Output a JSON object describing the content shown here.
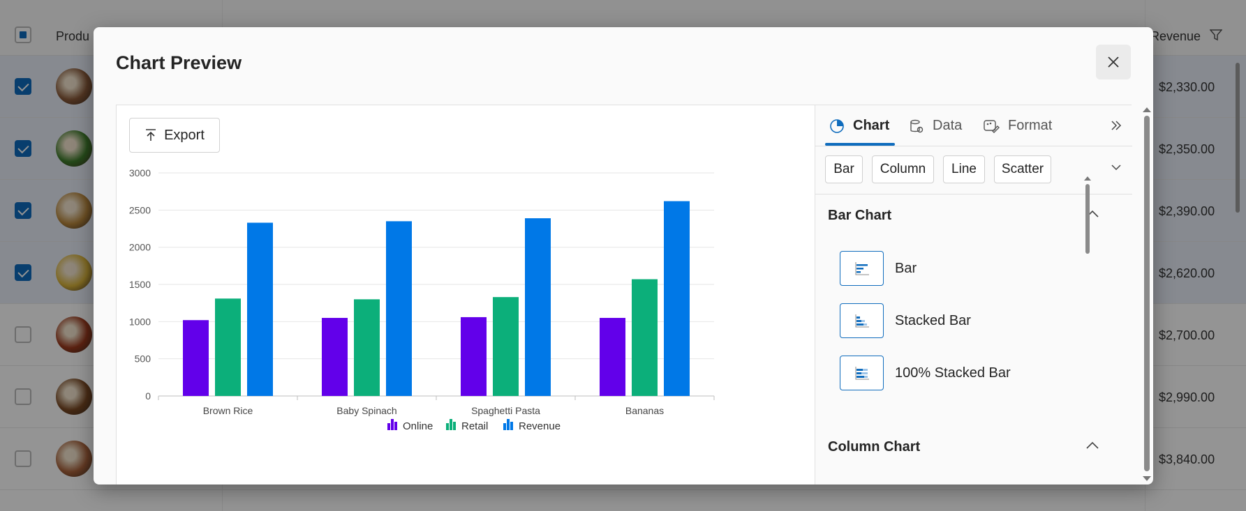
{
  "background": {
    "header": {
      "product_label": "Produ",
      "revenue_label": "Revenue"
    },
    "rows": [
      {
        "selected": true,
        "revenue": "$2,330.00",
        "avatar_color": "#8a5a3a"
      },
      {
        "selected": true,
        "revenue": "$2,350.00",
        "avatar_color": "#3f7d2c"
      },
      {
        "selected": true,
        "revenue": "$2,390.00",
        "avatar_color": "#b8873d"
      },
      {
        "selected": true,
        "revenue": "$2,620.00",
        "avatar_color": "#d8b33a"
      },
      {
        "selected": false,
        "revenue": "$2,700.00",
        "avatar_color": "#9c3a1e"
      },
      {
        "selected": false,
        "revenue": "$2,990.00",
        "avatar_color": "#7b4a25"
      },
      {
        "selected": false,
        "revenue": "$3,840.00",
        "avatar_color": "#a8623c"
      }
    ]
  },
  "dialog": {
    "title": "Chart Preview",
    "export_label": "Export"
  },
  "panel": {
    "tabs": [
      {
        "label": "Chart",
        "icon": "pie-chart-icon",
        "active": true
      },
      {
        "label": "Data",
        "icon": "database-settings-icon",
        "active": false
      },
      {
        "label": "Format",
        "icon": "paint-format-icon",
        "active": false
      }
    ],
    "chart_types": [
      "Bar",
      "Column",
      "Line",
      "Scatter"
    ],
    "sections": [
      {
        "title": "Bar Chart",
        "options": [
          "Bar",
          "Stacked Bar",
          "100% Stacked Bar"
        ]
      },
      {
        "title": "Column Chart",
        "options": []
      }
    ]
  },
  "colors": {
    "online": "#6200ea",
    "retail": "#0caf7a",
    "revenue": "#0078e7",
    "accent": "#0f6cbd"
  },
  "chart_data": {
    "type": "bar",
    "categories": [
      "Brown Rice",
      "Baby Spinach",
      "Spaghetti Pasta",
      "Bananas"
    ],
    "series": [
      {
        "name": "Online",
        "values": [
          1020,
          1050,
          1060,
          1050
        ]
      },
      {
        "name": "Retail",
        "values": [
          1310,
          1300,
          1330,
          1570
        ]
      },
      {
        "name": "Revenue",
        "values": [
          2330,
          2350,
          2390,
          2620
        ]
      }
    ],
    "ylim": [
      0,
      3000
    ],
    "yticks": [
      "0",
      "500",
      "1000",
      "1500",
      "2000",
      "2500",
      "3000"
    ],
    "grid": true,
    "legend": "bottom"
  }
}
